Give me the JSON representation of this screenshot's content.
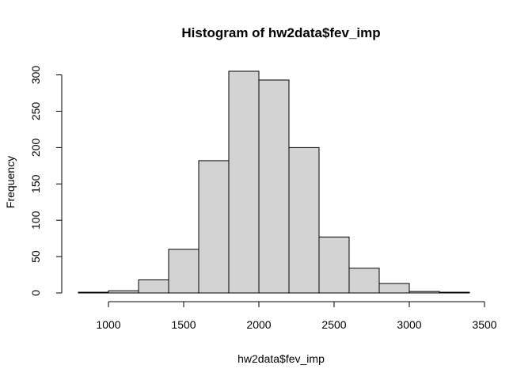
{
  "chart_data": {
    "type": "bar",
    "title": "Histogram of hw2data$fev_imp",
    "xlabel": "hw2data$fev_imp",
    "ylabel": "Frequency",
    "bins": [
      {
        "start": 800,
        "end": 1000,
        "count": 1
      },
      {
        "start": 1000,
        "end": 1200,
        "count": 3
      },
      {
        "start": 1200,
        "end": 1400,
        "count": 18
      },
      {
        "start": 1400,
        "end": 1600,
        "count": 60
      },
      {
        "start": 1600,
        "end": 1800,
        "count": 182
      },
      {
        "start": 1800,
        "end": 2000,
        "count": 305
      },
      {
        "start": 2000,
        "end": 2200,
        "count": 293
      },
      {
        "start": 2200,
        "end": 2400,
        "count": 200
      },
      {
        "start": 2400,
        "end": 2600,
        "count": 77
      },
      {
        "start": 2600,
        "end": 2800,
        "count": 34
      },
      {
        "start": 2800,
        "end": 3000,
        "count": 13
      },
      {
        "start": 3000,
        "end": 3200,
        "count": 2
      },
      {
        "start": 3200,
        "end": 3400,
        "count": 1
      }
    ],
    "xticks": [
      1000,
      1500,
      2000,
      2500,
      3000,
      3500
    ],
    "yticks": [
      0,
      50,
      100,
      150,
      200,
      250,
      300
    ],
    "xlim": [
      800,
      3500
    ],
    "ylim": [
      0,
      305
    ],
    "grid": false,
    "bar_fill": "#d3d3d3",
    "bar_stroke": "#000000"
  }
}
